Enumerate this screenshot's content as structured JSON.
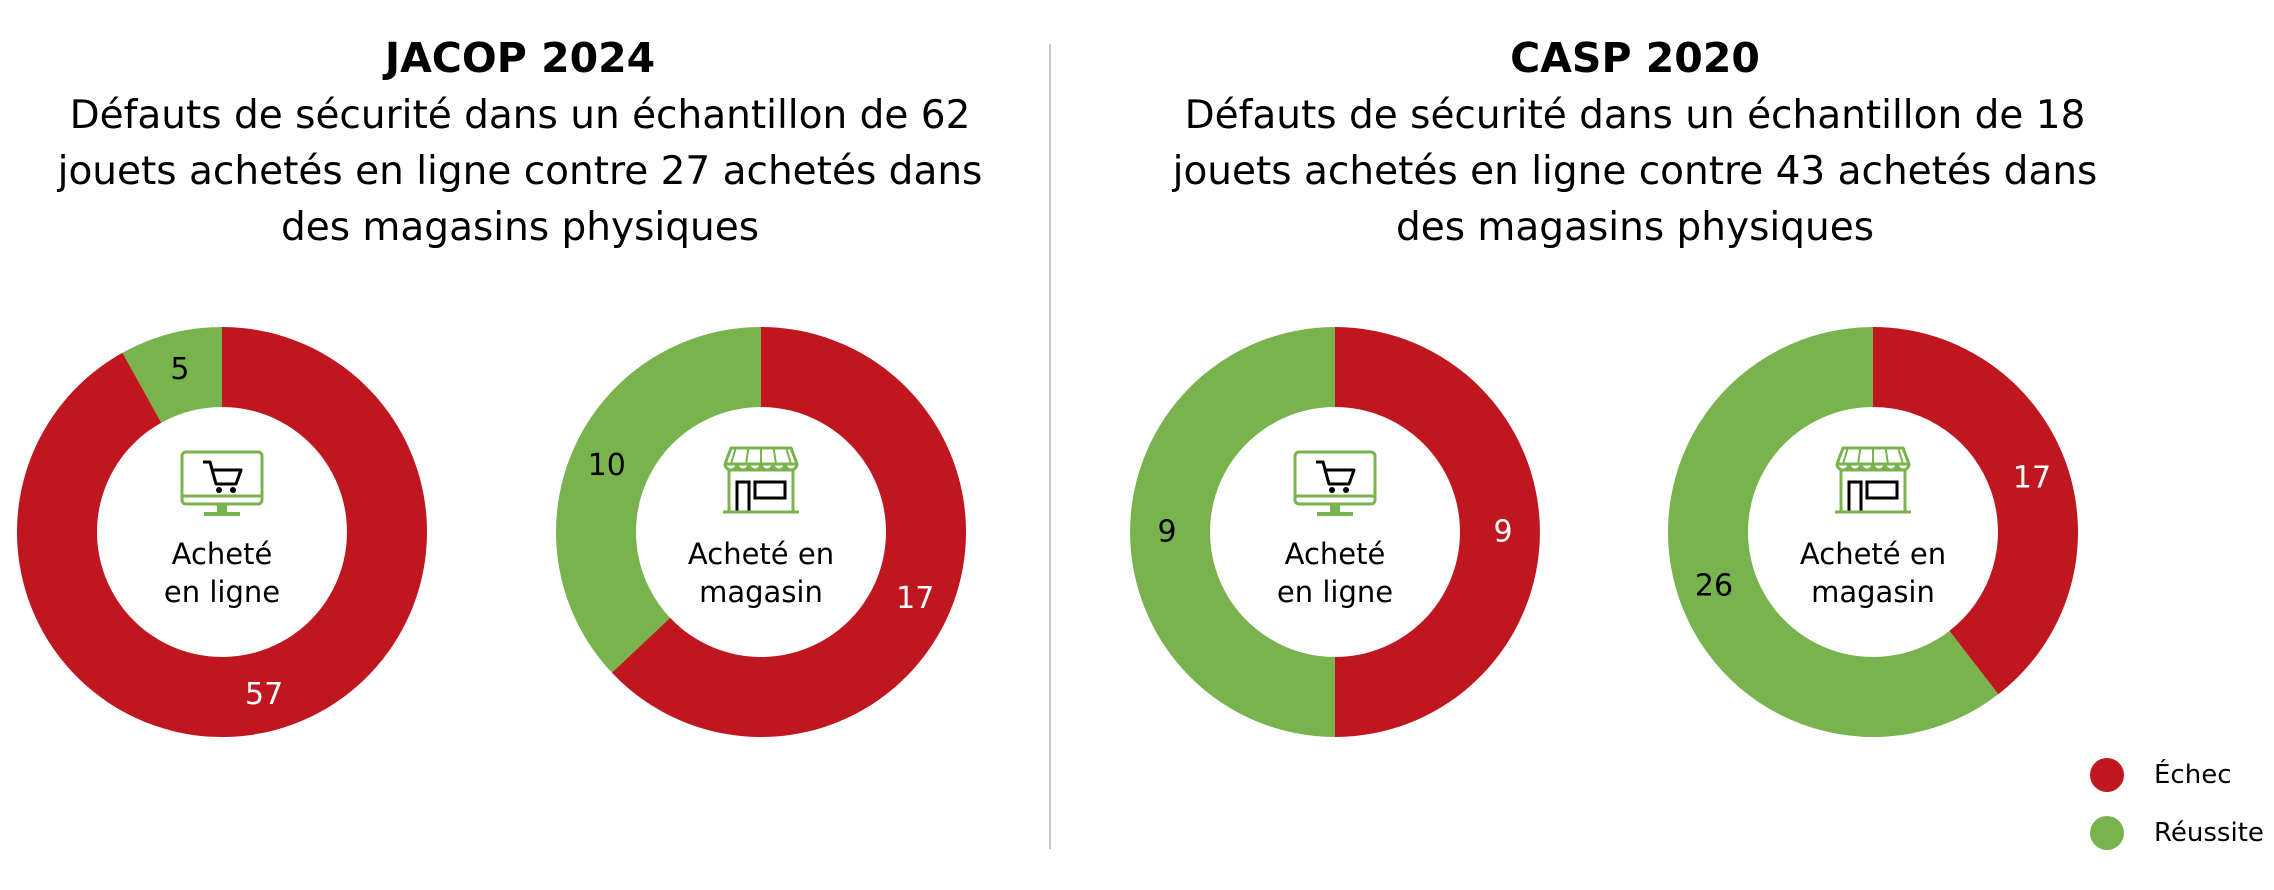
{
  "colors": {
    "fail": "#C0161F",
    "pass": "#78B34E",
    "icon": "#78B34E",
    "divider": "#C8C8C8"
  },
  "panels": [
    {
      "title": "JACOP 2024",
      "subtitle": "Défauts de sécurité dans un échantillon de 62 jouets achetés en ligne contre 27 achetés dans des magasins physiques"
    },
    {
      "title": "CASP 2020",
      "subtitle": "Défauts de sécurité dans un échantillon de 18 jouets achetés en ligne contre 43 achetés dans des magasins physiques"
    }
  ],
  "legend": {
    "fail": "Échec",
    "pass": "Réussite"
  },
  "chart_data": [
    {
      "type": "pie",
      "study": "JACOP 2024",
      "center_label": [
        "Acheté",
        "en ligne"
      ],
      "icon": "online-cart-icon",
      "series": [
        {
          "name": "Échec",
          "value": 57
        },
        {
          "name": "Réussite",
          "value": 5
        }
      ]
    },
    {
      "type": "pie",
      "study": "JACOP 2024",
      "center_label": [
        "Acheté en",
        "magasin"
      ],
      "icon": "store-icon",
      "series": [
        {
          "name": "Échec",
          "value": 17
        },
        {
          "name": "Réussite",
          "value": 10
        }
      ]
    },
    {
      "type": "pie",
      "study": "CASP 2020",
      "center_label": [
        "Acheté",
        "en ligne"
      ],
      "icon": "online-cart-icon",
      "series": [
        {
          "name": "Échec",
          "value": 9
        },
        {
          "name": "Réussite",
          "value": 9
        }
      ]
    },
    {
      "type": "pie",
      "study": "CASP 2020",
      "center_label": [
        "Acheté en",
        "magasin"
      ],
      "icon": "store-icon",
      "series": [
        {
          "name": "Échec",
          "value": 17
        },
        {
          "name": "Réussite",
          "value": 26
        }
      ]
    }
  ]
}
